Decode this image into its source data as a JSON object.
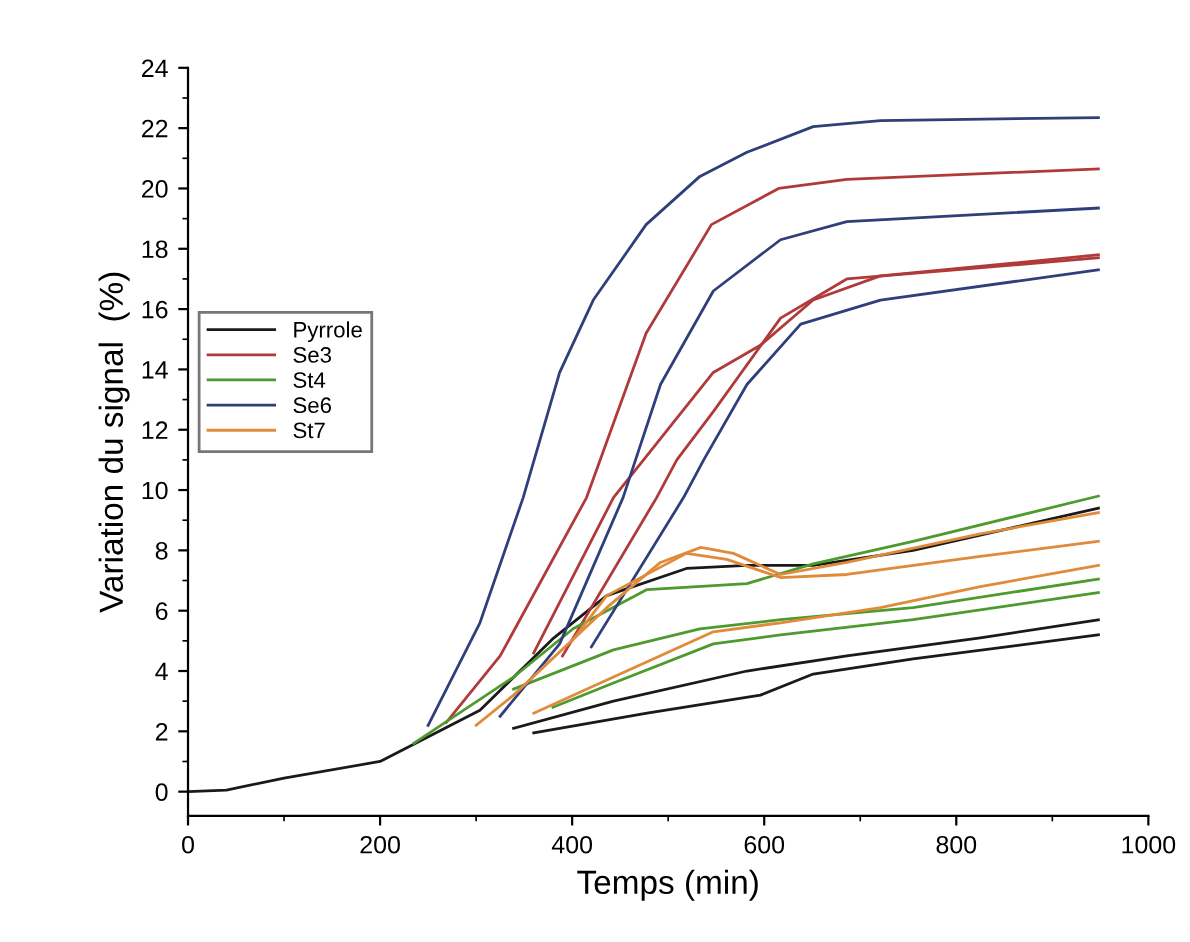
{
  "chart_data": {
    "type": "line",
    "xlabel": "Temps (min)",
    "ylabel": "Variation du signal  (%)",
    "xlim": [
      0,
      1000
    ],
    "xticks": [
      0,
      200,
      400,
      600,
      800,
      1000
    ],
    "ylim": [
      -0.8,
      24
    ],
    "yticks": [
      0,
      2,
      4,
      6,
      8,
      10,
      12,
      14,
      16,
      18,
      20,
      22,
      24
    ],
    "grid": false,
    "legend": "left",
    "marker": "none",
    "line_style": "solid",
    "series": [
      {
        "name": "Pyrrole",
        "color": "#1a1a1a",
        "x": [
          0,
          40,
          100,
          200,
          304,
          381,
          436,
          519,
          582,
          651,
          755,
          948
        ],
        "values": [
          0,
          0.05,
          0.45,
          1.0,
          2.7,
          5.1,
          6.5,
          7.4,
          7.5,
          7.5,
          8.0,
          9.4
        ]
      },
      {
        "color": "#1a1a1a",
        "x": [
          339,
          443,
          582,
          686,
          825,
          948
        ],
        "values": [
          2.1,
          3.0,
          4.0,
          4.5,
          5.1,
          5.7
        ]
      },
      {
        "color": "#1a1a1a",
        "x": [
          360,
          478,
          596,
          651,
          755,
          948
        ],
        "values": [
          1.95,
          2.6,
          3.2,
          3.9,
          4.4,
          5.2
        ]
      },
      {
        "name": "Se3",
        "color": "#b03a3a",
        "x": [
          269,
          325,
          415,
          477,
          545,
          615,
          686,
          948
        ],
        "values": [
          2.3,
          4.5,
          9.75,
          15.2,
          18.8,
          20.0,
          20.3,
          20.65
        ]
      },
      {
        "color": "#b03a3a",
        "x": [
          360,
          443,
          547,
          596,
          651,
          721,
          948
        ],
        "values": [
          4.6,
          9.75,
          13.9,
          14.8,
          16.3,
          17.1,
          17.8
        ]
      },
      {
        "color": "#b03a3a",
        "x": [
          390,
          488,
          509,
          547,
          617,
          686,
          948
        ],
        "values": [
          4.5,
          9.75,
          11.0,
          12.6,
          15.7,
          17.0,
          17.7
        ]
      },
      {
        "name": "St4",
        "color": "#4e9a2e",
        "x": [
          235,
          339,
          401,
          478,
          582,
          651,
          755,
          948
        ],
        "values": [
          1.6,
          3.8,
          5.4,
          6.7,
          6.9,
          7.55,
          8.3,
          9.8
        ]
      },
      {
        "color": "#4e9a2e",
        "x": [
          339,
          443,
          533,
          617,
          755,
          948
        ],
        "values": [
          3.4,
          4.7,
          5.4,
          5.7,
          6.1,
          7.05
        ]
      },
      {
        "color": "#4e9a2e",
        "x": [
          380,
          443,
          547,
          617,
          755,
          948
        ],
        "values": [
          2.8,
          3.6,
          4.9,
          5.2,
          5.7,
          6.6
        ]
      },
      {
        "name": "Se6",
        "color": "#2f3f7a",
        "x": [
          250,
          304,
          349,
          387,
          422,
          477,
          533,
          582,
          651,
          721,
          948
        ],
        "values": [
          2.2,
          5.6,
          9.75,
          13.9,
          16.3,
          18.8,
          20.4,
          21.2,
          22.05,
          22.25,
          22.35
        ]
      },
      {
        "color": "#2f3f7a",
        "x": [
          325,
          387,
          453,
          492,
          547,
          617,
          686,
          948
        ],
        "values": [
          2.5,
          4.9,
          9.75,
          13.5,
          16.6,
          18.3,
          18.9,
          19.35
        ]
      },
      {
        "color": "#2f3f7a",
        "x": [
          420,
          516,
          537,
          582,
          638,
          721,
          948
        ],
        "values": [
          4.8,
          9.75,
          11.0,
          13.5,
          15.5,
          16.3,
          17.3
        ]
      },
      {
        "name": "St7",
        "color": "#e08a3a",
        "x": [
          300,
          339,
          436,
          492,
          534,
          568,
          617,
          686,
          825,
          948
        ],
        "values": [
          2.2,
          3.2,
          6.1,
          7.6,
          8.1,
          7.9,
          7.2,
          7.6,
          8.55,
          9.25
        ]
      },
      {
        "color": "#e08a3a",
        "x": [
          400,
          436,
          519,
          561,
          617,
          686,
          825,
          948
        ],
        "values": [
          5.0,
          6.5,
          7.9,
          7.7,
          7.1,
          7.2,
          7.8,
          8.3
        ]
      },
      {
        "color": "#e08a3a",
        "x": [
          360,
          443,
          547,
          617,
          721,
          825,
          948
        ],
        "values": [
          2.6,
          3.8,
          5.3,
          5.6,
          6.1,
          6.8,
          7.5
        ]
      }
    ]
  }
}
